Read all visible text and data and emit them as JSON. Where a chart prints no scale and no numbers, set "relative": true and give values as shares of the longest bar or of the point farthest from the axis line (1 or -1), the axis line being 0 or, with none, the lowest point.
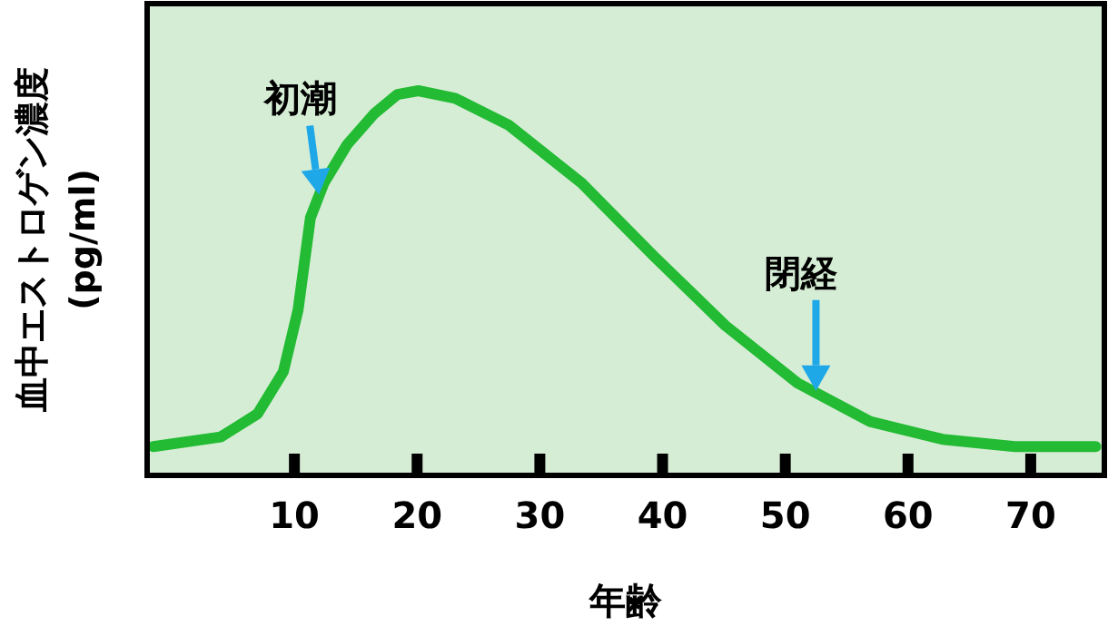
{
  "chart_data": {
    "type": "line",
    "relative": true,
    "xlabel": "年齢",
    "ylabel": "血中エストロゲン濃度\n(pg/ml)",
    "xlim": [
      -2,
      76
    ],
    "xticks": [
      10,
      20,
      30,
      40,
      50,
      60,
      70
    ],
    "series": [
      {
        "color": "#22bb33",
        "x": [
          -1.5,
          4,
          7,
          9.1,
          10.3,
          11.3,
          12.4,
          14.3,
          16.5,
          18.4,
          20.1,
          23.1,
          27.5,
          33.4,
          39.3,
          45.1,
          51,
          56.9,
          62.8,
          68.7,
          75.3
        ],
        "values": [
          0.075,
          0.1,
          0.16,
          0.27,
          0.43,
          0.67,
          0.76,
          0.86,
          0.94,
          0.99,
          1,
          0.98,
          0.91,
          0.76,
          0.57,
          0.39,
          0.24,
          0.14,
          0.094,
          0.075,
          0.075
        ]
      }
    ],
    "annotations": [
      {
        "text": "初潮",
        "x": 12,
        "y": 0.73
      },
      {
        "text": "閉経",
        "x": 52.5,
        "y": 0.22
      }
    ]
  }
}
